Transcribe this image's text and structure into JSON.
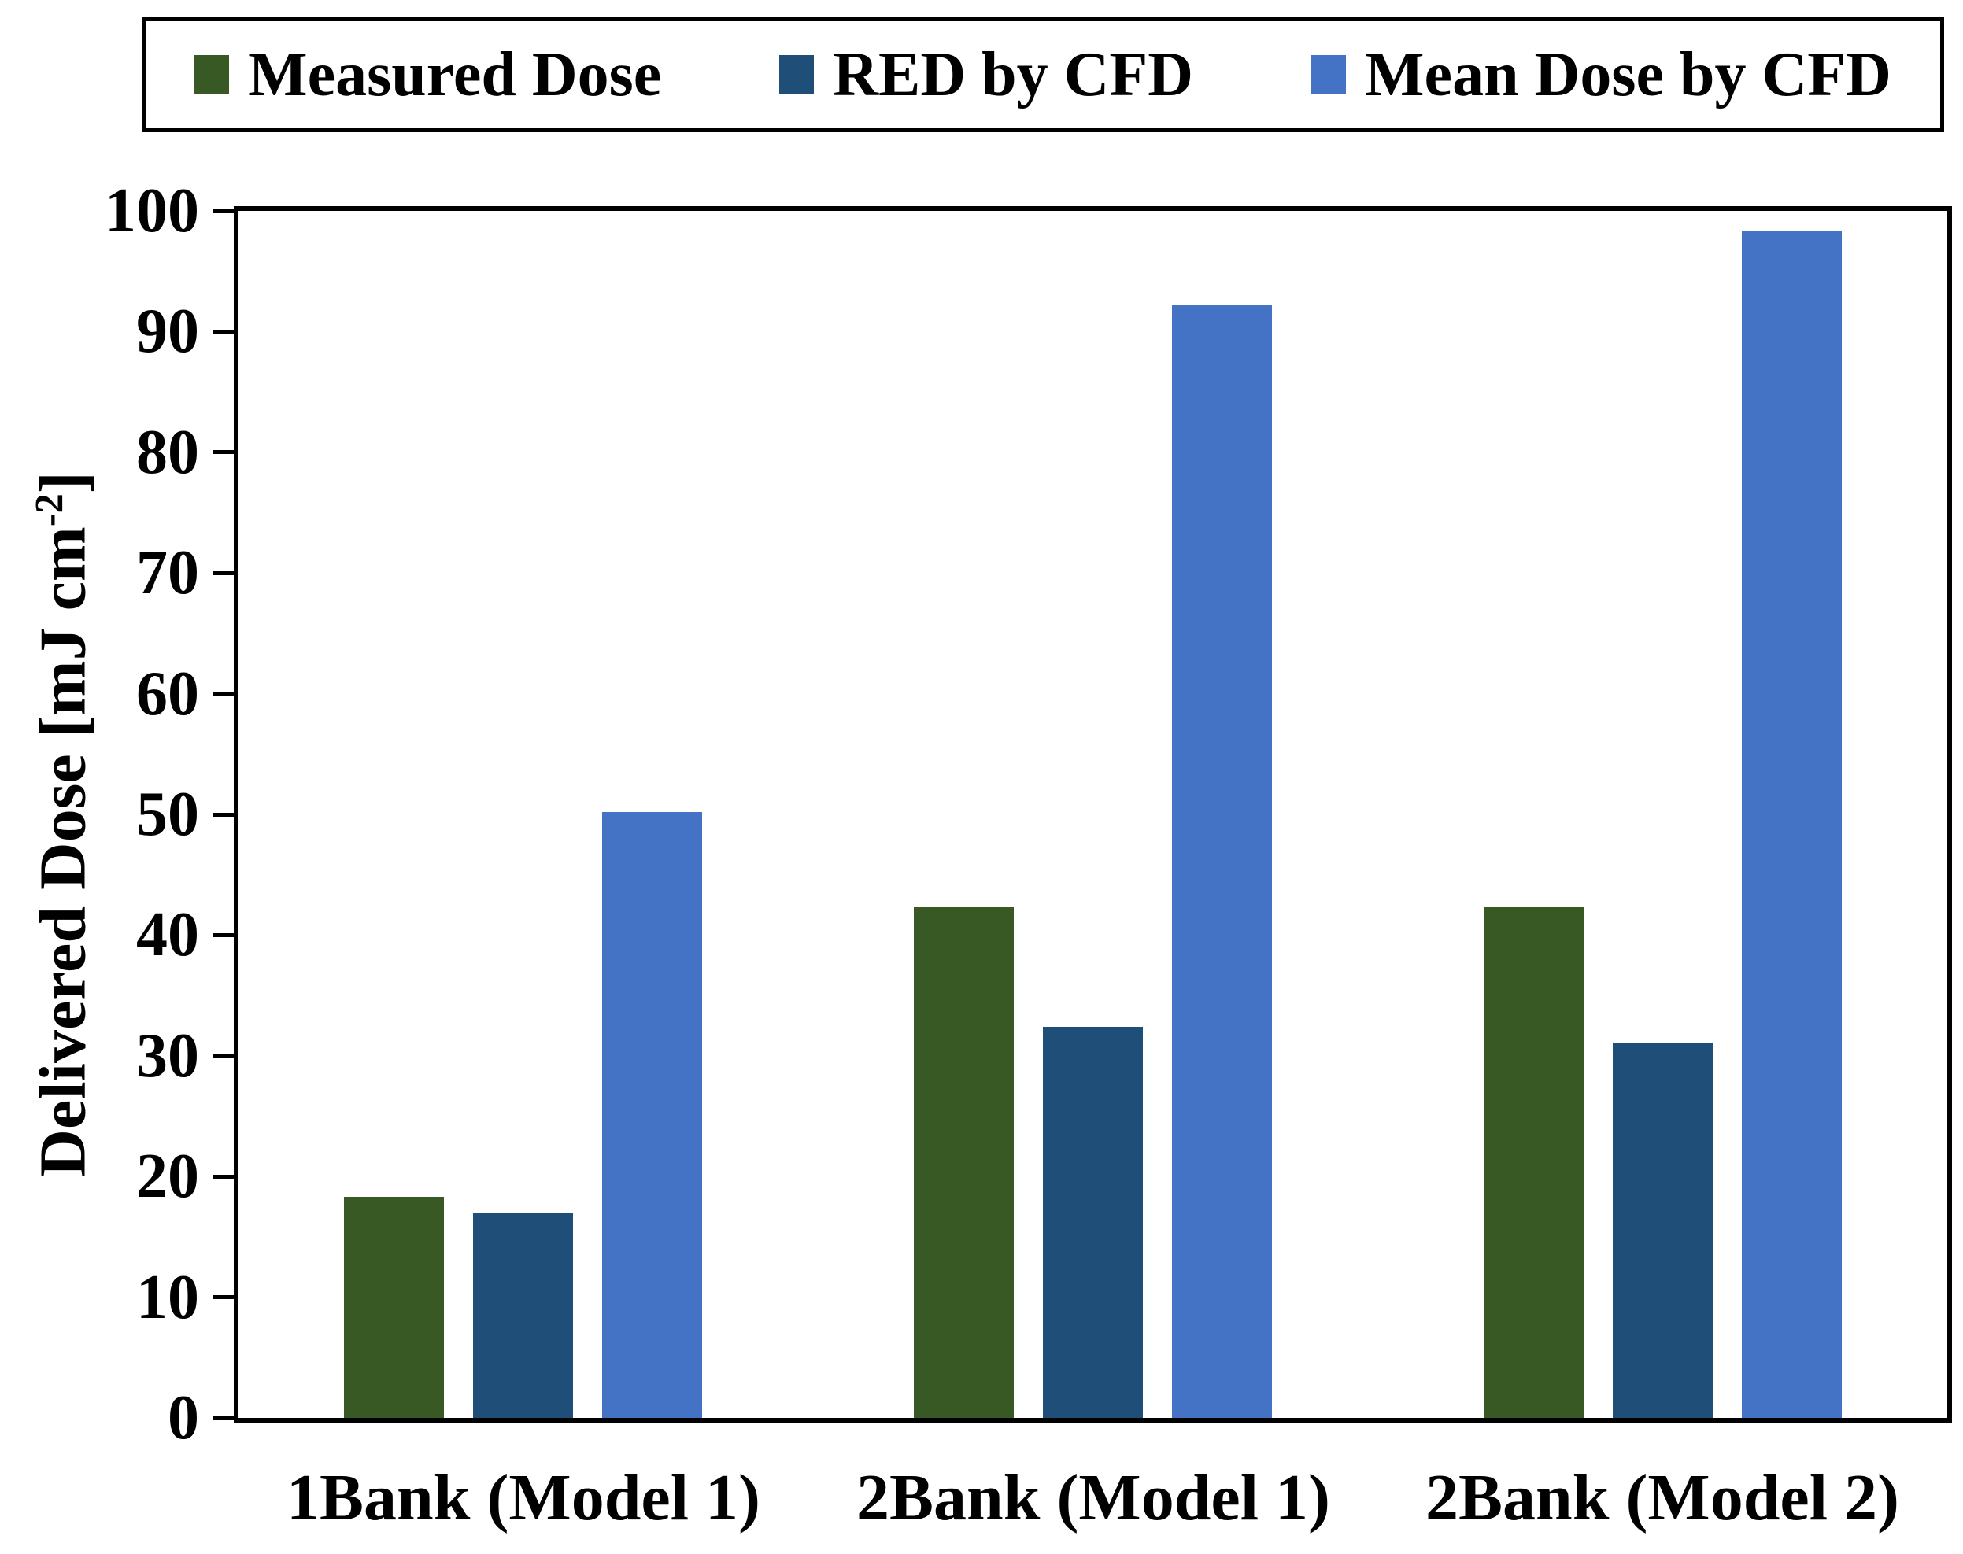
{
  "chart_data": {
    "type": "bar",
    "categories": [
      "1Bank (Model 1)",
      "2Bank (Model 1)",
      "2Bank (Model 2)"
    ],
    "series": [
      {
        "name": "Measured Dose",
        "color": "#395924",
        "values": [
          18.3,
          42.3,
          42.3
        ]
      },
      {
        "name": "RED by CFD",
        "color": "#1F4E79",
        "values": [
          17.0,
          32.4,
          31.1
        ]
      },
      {
        "name": "Mean Dose by CFD",
        "color": "#4472C4",
        "values": [
          50.2,
          92.2,
          98.3
        ]
      }
    ],
    "title": "",
    "xlabel": "",
    "ylabel": "Delivered Dose [mJ cm-2]",
    "ylim": [
      0,
      100
    ],
    "ytick_step": 10,
    "yticks": [
      "0",
      "10",
      "20",
      "30",
      "40",
      "50",
      "60",
      "70",
      "80",
      "90",
      "100"
    ],
    "grid": false,
    "legend_position": "top"
  },
  "y_axis_title": {
    "before_sup": "Delivered Dose [mJ cm",
    "sup": "-2",
    "after_sup": "]"
  },
  "colors": {
    "axis": "#000000",
    "background": "#ffffff",
    "text": "#000000"
  }
}
